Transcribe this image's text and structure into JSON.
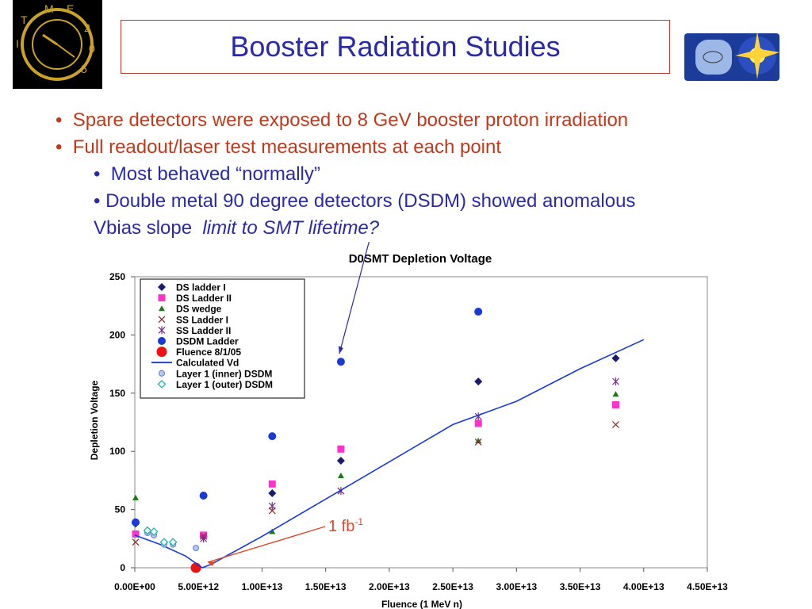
{
  "slide": {
    "title": "Booster Radiation Studies",
    "bullets": [
      {
        "text": "Spare detectors were exposed to 8 GeV booster proton irradiation"
      },
      {
        "text": "Full readout/laser test measurements at each point"
      },
      {
        "text": "Most behaved “normally”"
      },
      {
        "text": "Double metal 90 degree detectors (DSDM) showed anomalous"
      },
      {
        "text_main": "Vbias slope",
        "text_italic": "limit to SMT lifetime?"
      }
    ],
    "logo_left_text": "TIME 2005",
    "logo_right_text": "DØ"
  },
  "colors": {
    "title": "#2a2aa8",
    "bullet_red": "#c0391b",
    "bullet_blue": "#2a2aa8",
    "box_border": "#c0392b"
  },
  "chart_data": {
    "type": "scatter",
    "title": "D0SMT Depletion Voltage",
    "xlabel": "Fluence (1 MeV n)",
    "ylabel": "Depletion Voltage",
    "xlim": [
      0,
      45000000000000.0
    ],
    "ylim": [
      0,
      250
    ],
    "x_ticks": [
      "0.00E+00",
      "5.00E+12",
      "1.00E+13",
      "1.50E+13",
      "2.00E+13",
      "2.50E+13",
      "3.00E+13",
      "3.50E+13",
      "4.00E+13",
      "4.50E+13"
    ],
    "y_ticks": [
      "0",
      "50",
      "100",
      "150",
      "200",
      "250"
    ],
    "grid": false,
    "legend_position": "top-left",
    "annotation": {
      "text": "1 fb",
      "sup": "-1",
      "x": 5000000000000.0,
      "y": 0
    },
    "series": [
      {
        "name": "DS ladder I",
        "marker": "diamond",
        "color": "#1a1a6e",
        "points": [
          [
            0,
            38
          ],
          [
            5400000000000.0,
            27
          ],
          [
            10800000000000.0,
            64
          ],
          [
            16200000000000.0,
            92
          ],
          [
            27000000000000.0,
            160
          ],
          [
            37800000000000.0,
            180
          ]
        ]
      },
      {
        "name": "DS Ladder II",
        "marker": "square",
        "color": "#ff33cc",
        "points": [
          [
            0,
            29
          ],
          [
            5400000000000.0,
            28
          ],
          [
            10800000000000.0,
            72
          ],
          [
            16200000000000.0,
            102
          ],
          [
            27000000000000.0,
            124
          ],
          [
            37800000000000.0,
            140
          ]
        ]
      },
      {
        "name": "DS wedge",
        "marker": "triangle",
        "color": "#1a7a1a",
        "points": [
          [
            0,
            60
          ],
          [
            10800000000000.0,
            31
          ],
          [
            16200000000000.0,
            79
          ],
          [
            27000000000000.0,
            109
          ],
          [
            37800000000000.0,
            149
          ]
        ]
      },
      {
        "name": "SS Ladder I",
        "marker": "x",
        "color": "#8b2a2a",
        "points": [
          [
            0,
            22
          ],
          [
            5400000000000.0,
            27
          ],
          [
            10800000000000.0,
            49
          ],
          [
            16200000000000.0,
            66
          ],
          [
            27000000000000.0,
            108
          ],
          [
            37800000000000.0,
            123
          ]
        ]
      },
      {
        "name": "SS Ladder II",
        "marker": "star",
        "color": "#7a2a8a",
        "points": [
          [
            5400000000000.0,
            25
          ],
          [
            10800000000000.0,
            53
          ],
          [
            16200000000000.0,
            66
          ],
          [
            27000000000000.0,
            130
          ],
          [
            37800000000000.0,
            160
          ]
        ]
      },
      {
        "name": "DSDM Ladder",
        "marker": "circle",
        "color": "#1a3ad8",
        "points": [
          [
            0,
            39
          ],
          [
            5400000000000.0,
            62
          ],
          [
            10800000000000.0,
            113
          ],
          [
            16200000000000.0,
            177
          ],
          [
            27000000000000.0,
            220
          ]
        ]
      },
      {
        "name": "Fluence 8/1/05",
        "marker": "bigcircle",
        "color": "#ee1111",
        "points": [
          [
            4800000000000.0,
            0
          ]
        ]
      },
      {
        "name": "Calculated Vd",
        "marker": "line",
        "color": "#1a3ad8",
        "points": [
          [
            0,
            28
          ],
          [
            2000000000000.0,
            20
          ],
          [
            4000000000000.0,
            10
          ],
          [
            5300000000000.0,
            0
          ],
          [
            6000000000000.0,
            3
          ],
          [
            10000000000000.0,
            27
          ],
          [
            15000000000000.0,
            59
          ],
          [
            20000000000000.0,
            91
          ],
          [
            25000000000000.0,
            123
          ],
          [
            30000000000000.0,
            143
          ],
          [
            35000000000000.0,
            171
          ],
          [
            40000000000000.0,
            196
          ]
        ]
      },
      {
        "name": "Layer 1 (inner) DSDM",
        "marker": "smallcircle",
        "color": "#6a8ad8",
        "points": [
          [
            1000000000000.0,
            30
          ],
          [
            1500000000000.0,
            28
          ],
          [
            2300000000000.0,
            20
          ],
          [
            3000000000000.0,
            20
          ],
          [
            4800000000000.0,
            17
          ]
        ]
      },
      {
        "name": "Layer 1 (outer) DSDM",
        "marker": "hollowdiamond",
        "color": "#22aaaa",
        "points": [
          [
            1000000000000.0,
            32
          ],
          [
            1500000000000.0,
            31
          ],
          [
            2300000000000.0,
            22
          ],
          [
            3000000000000.0,
            22
          ]
        ]
      }
    ]
  }
}
